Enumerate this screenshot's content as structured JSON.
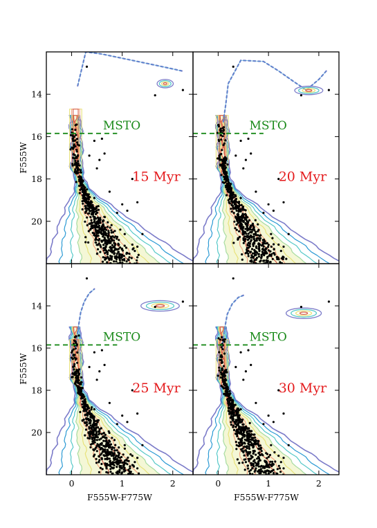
{
  "chart_data": {
    "type": "scatter",
    "layout": "2x2 grid, shared axes",
    "xlabel": "F555W-F775W",
    "ylabel": "F555W",
    "xlim": [
      -0.5,
      2.4
    ],
    "ylim": [
      22.0,
      12.0
    ],
    "y_inverted": true,
    "xticks": [
      0,
      1,
      2
    ],
    "yticks": [
      14,
      16,
      18,
      20
    ],
    "grid": false,
    "msto": {
      "label": "MSTO",
      "y": 15.85,
      "x_range": [
        -0.5,
        0.9
      ],
      "color": "#1a8a1a"
    },
    "panels": [
      {
        "age_label": "15 Myr"
      },
      {
        "age_label": "20 Myr"
      },
      {
        "age_label": "25 Myr"
      },
      {
        "age_label": "30 Myr"
      }
    ],
    "contour_colors": [
      "#7b7bc9",
      "#2b9ad4",
      "#55c8c8",
      "#a6dba0",
      "#e8e27a",
      "#f4a582",
      "#d6604d"
    ],
    "point_color": "#000000"
  }
}
